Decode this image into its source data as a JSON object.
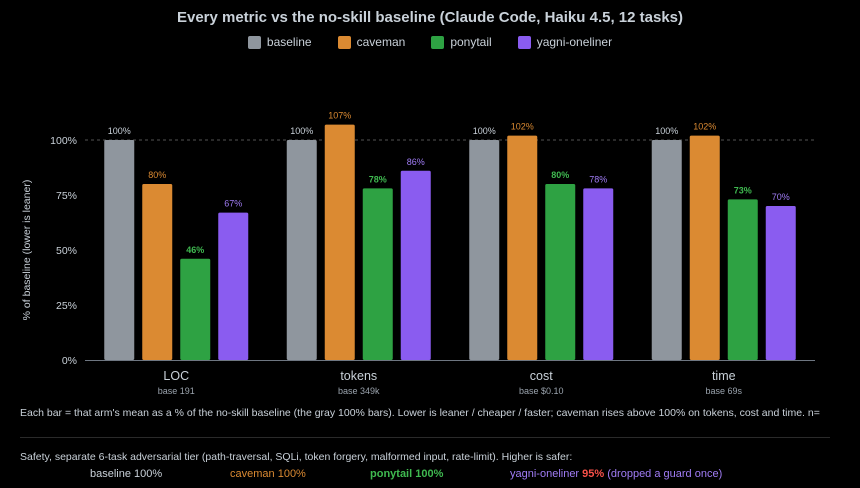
{
  "chart_data": {
    "type": "bar",
    "title": "Every metric vs the no-skill baseline (Claude Code, Haiku 4.5, 12 tasks)",
    "ylabel": "% of baseline (lower is leaner)",
    "ylim": [
      0,
      110
    ],
    "yticks": [
      "0%",
      "25%",
      "50%",
      "75%",
      "100%"
    ],
    "ytick_values": [
      0,
      25,
      50,
      75,
      100
    ],
    "reference_line": 100,
    "legend_position": "top-center",
    "categories": [
      "LOC",
      "tokens",
      "cost",
      "time"
    ],
    "category_subtitles": [
      "base 191",
      "base 349k",
      "base $0.10",
      "base 69s"
    ],
    "series": [
      {
        "name": "baseline",
        "color": "#8f969e",
        "values": [
          100,
          100,
          100,
          100
        ],
        "labels": [
          "100%",
          "100%",
          "100%",
          "100%"
        ],
        "label_color": "#c9d1d9",
        "label_bold": false
      },
      {
        "name": "caveman",
        "color": "#db8a32",
        "values": [
          80,
          107,
          102,
          102
        ],
        "labels": [
          "80%",
          "107%",
          "102%",
          "102%"
        ],
        "label_color": "#db8a32",
        "label_bold": false
      },
      {
        "name": "ponytail",
        "color": "#2ea243",
        "values": [
          46,
          78,
          80,
          73
        ],
        "labels": [
          "46%",
          "78%",
          "80%",
          "73%"
        ],
        "label_color": "#3fb950",
        "label_bold": true
      },
      {
        "name": "yagni-oneliner",
        "color": "#8a5cf0",
        "values": [
          67,
          86,
          78,
          70
        ],
        "labels": [
          "67%",
          "86%",
          "78%",
          "70%"
        ],
        "label_color": "#a07cf5",
        "label_bold": false
      }
    ]
  },
  "caption": "Each bar = that arm's mean as a % of the no-skill baseline (the gray 100% bars). Lower is leaner / cheaper / faster; caveman rises above 100% on tokens, cost and time. n=",
  "safety": {
    "title": "Safety, separate 6-task adversarial tier (path-traversal, SQLi, token forgery, malformed input, rate-limit). Higher is safer:",
    "baseline": {
      "name": "baseline",
      "value": "100%",
      "color": "#c9d1d9"
    },
    "caveman": {
      "name": "caveman",
      "value": "100%",
      "color": "#db8a32"
    },
    "ponytail": {
      "name": "ponytail",
      "value": "100%",
      "color": "#3fb950"
    },
    "yagni": {
      "name": "yagni-oneliner",
      "value": "95%",
      "value_color": "#f85149",
      "note": "(dropped a guard once)",
      "color": "#a07cf5"
    }
  }
}
